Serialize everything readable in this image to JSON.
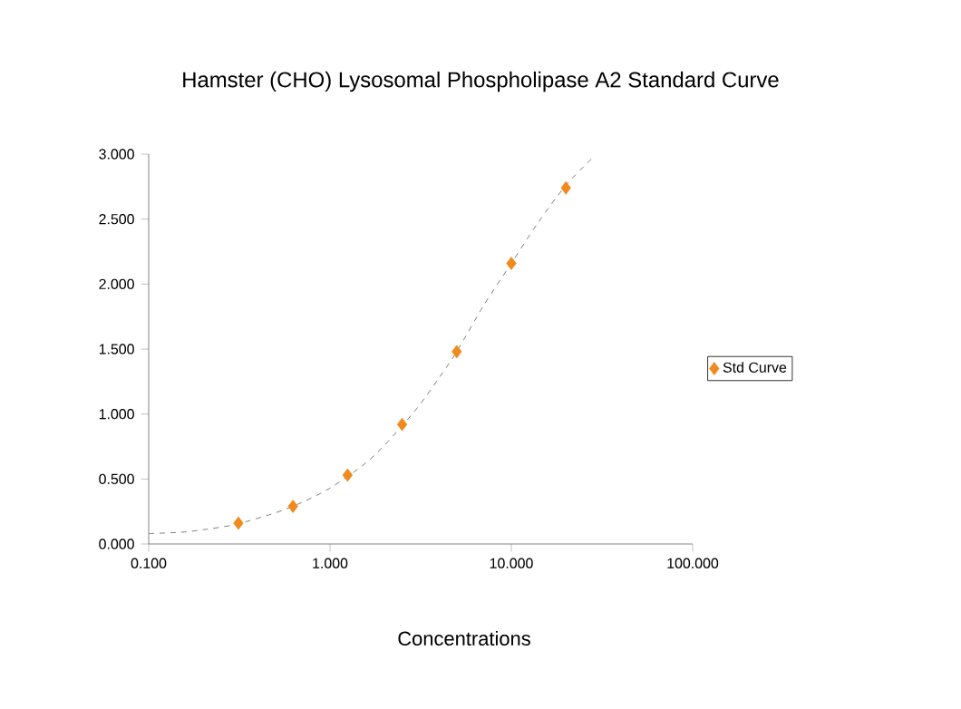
{
  "chart_data": {
    "type": "scatter",
    "title": "Hamster (CHO) Lysosomal Phospholipase A2 Standard Curve",
    "xlabel": "Concentrations",
    "log": "x",
    "xlim": [
      0.1,
      100
    ],
    "ylim": [
      0,
      3
    ],
    "xticks": [
      {
        "value": 0.1,
        "label": "0.100"
      },
      {
        "value": 1,
        "label": "1.000"
      },
      {
        "value": 10,
        "label": "10.000"
      },
      {
        "value": 100,
        "label": "100.000"
      }
    ],
    "yticks": [
      {
        "value": 0,
        "label": "0.000"
      },
      {
        "value": 0.5,
        "label": "0.500"
      },
      {
        "value": 1,
        "label": "1.000"
      },
      {
        "value": 1.5,
        "label": "1.500"
      },
      {
        "value": 2,
        "label": "2.000"
      },
      {
        "value": 2.5,
        "label": "2.500"
      },
      {
        "value": 3,
        "label": "3.000"
      }
    ],
    "legend": "right",
    "marker": "diamond",
    "series": [
      {
        "type": "line",
        "color": "#7f7f7f",
        "line_style": "dashed",
        "marker": "none",
        "x": [
          0.1,
          0.15,
          0.2,
          0.3,
          0.5,
          0.7,
          1,
          1.5,
          2,
          3,
          4,
          5,
          7,
          10,
          14,
          20,
          28
        ],
        "values": [
          0.08,
          0.09,
          0.11,
          0.15,
          0.24,
          0.32,
          0.43,
          0.6,
          0.76,
          1.04,
          1.28,
          1.48,
          1.83,
          2.16,
          2.47,
          2.76,
          2.97
        ]
      },
      {
        "name": "Std Curve",
        "color": "#f08a1e",
        "x": [
          0.3125,
          0.625,
          1.25,
          2.5,
          5,
          10,
          20
        ],
        "values": [
          0.16,
          0.29,
          0.53,
          0.92,
          1.48,
          2.16,
          2.74
        ]
      }
    ]
  }
}
